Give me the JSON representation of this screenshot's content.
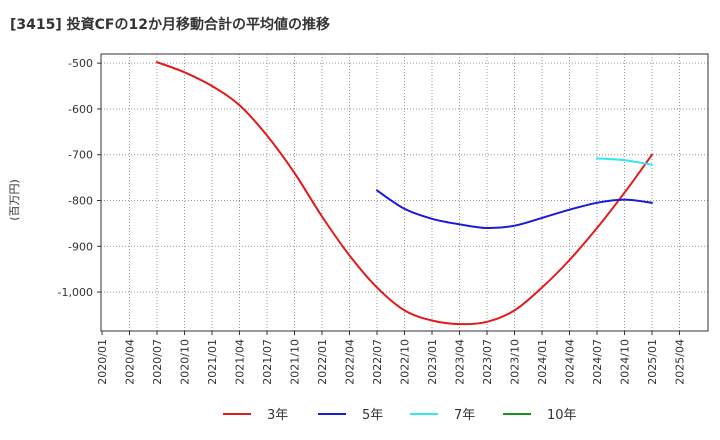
{
  "title": "[3415]  投資CFの12か月移動合計の平均値の推移",
  "chart_data": {
    "type": "line",
    "title": "[3415]  投資CFの12か月移動合計の平均値の推移",
    "ylabel": "(百万円)",
    "xlabel": "",
    "ylim": [
      -1085,
      -480
    ],
    "x_ticks": [
      "2020/01",
      "2020/04",
      "2020/07",
      "2020/10",
      "2021/01",
      "2021/04",
      "2021/07",
      "2021/10",
      "2022/01",
      "2022/04",
      "2022/07",
      "2022/10",
      "2023/01",
      "2023/04",
      "2023/07",
      "2023/10",
      "2024/01",
      "2024/04",
      "2024/07",
      "2024/10",
      "2025/01",
      "2025/04"
    ],
    "y_ticks": [
      -500,
      -600,
      -700,
      -800,
      -900,
      -1000
    ],
    "y_tick_labels": [
      "-500",
      "-600",
      "-700",
      "-800",
      "-900",
      "-1,000"
    ],
    "grid": true,
    "legend_position": "bottom",
    "series": [
      {
        "name": "3年",
        "color": "#e31a1c",
        "points": [
          [
            "2020/07",
            -498
          ],
          [
            "2020/10",
            -520
          ],
          [
            "2021/01",
            -550
          ],
          [
            "2021/04",
            -592
          ],
          [
            "2021/07",
            -658
          ],
          [
            "2021/10",
            -740
          ],
          [
            "2022/01",
            -835
          ],
          [
            "2022/04",
            -920
          ],
          [
            "2022/07",
            -990
          ],
          [
            "2022/10",
            -1040
          ],
          [
            "2023/01",
            -1062
          ],
          [
            "2023/04",
            -1070
          ],
          [
            "2023/07",
            -1065
          ],
          [
            "2023/10",
            -1040
          ],
          [
            "2024/01",
            -990
          ],
          [
            "2024/04",
            -930
          ],
          [
            "2024/07",
            -860
          ],
          [
            "2024/10",
            -783
          ],
          [
            "2025/01",
            -700
          ]
        ]
      },
      {
        "name": "5年",
        "color": "#1a1adb",
        "points": [
          [
            "2022/07",
            -778
          ],
          [
            "2022/10",
            -818
          ],
          [
            "2023/01",
            -840
          ],
          [
            "2023/04",
            -852
          ],
          [
            "2023/07",
            -860
          ],
          [
            "2023/10",
            -855
          ],
          [
            "2024/01",
            -838
          ],
          [
            "2024/04",
            -820
          ],
          [
            "2024/07",
            -805
          ],
          [
            "2024/10",
            -798
          ],
          [
            "2025/01",
            -805
          ]
        ]
      },
      {
        "name": "7年",
        "color": "#33e6f0",
        "points": [
          [
            "2024/07",
            -708
          ],
          [
            "2024/10",
            -712
          ],
          [
            "2025/01",
            -722
          ]
        ]
      },
      {
        "name": "10年",
        "color": "#228b22",
        "points": []
      }
    ]
  }
}
